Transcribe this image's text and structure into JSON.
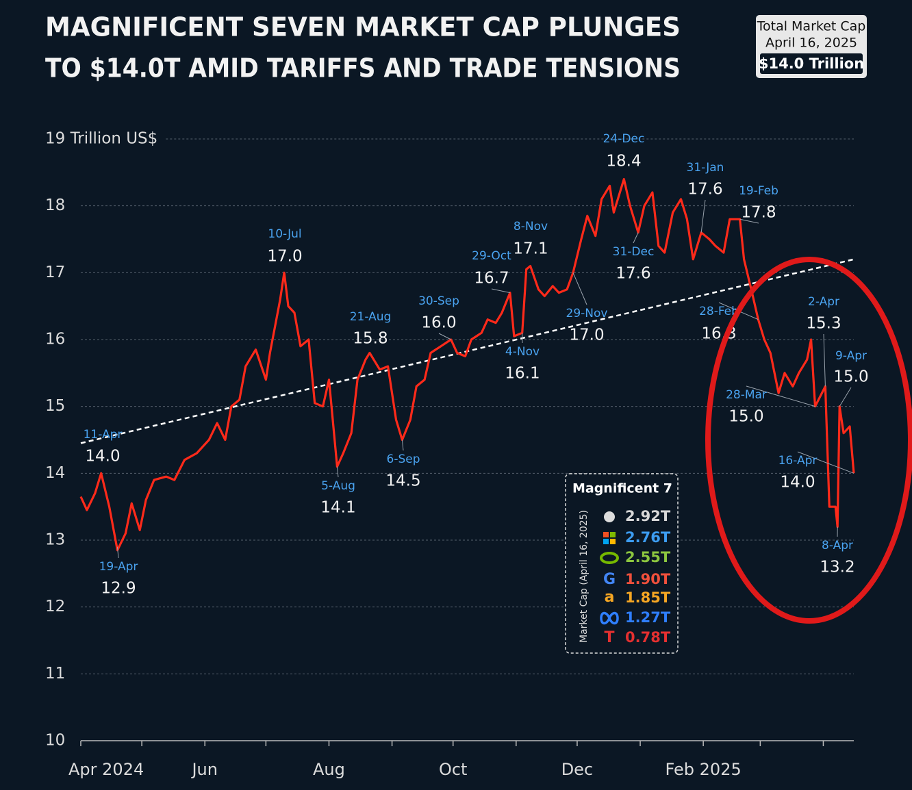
{
  "chart_data": {
    "type": "line",
    "title": [
      "MAGNIFICENT SEVEN MARKET CAP PLUNGES",
      "TO $14.0T AMID TARIFFS AND TRADE TENSIONS"
    ],
    "summary_box": {
      "title": "Total Market Cap",
      "date": "April 16, 2025",
      "value": "$14.0 Trillion"
    },
    "xlim": [
      "2024-04-01",
      "2025-04-16"
    ],
    "xticks": [
      {
        "value": "2024-04-01",
        "label": "Apr 2024"
      },
      {
        "value": "2024-06-01",
        "label": "Jun"
      },
      {
        "value": "2024-08-01",
        "label": "Aug"
      },
      {
        "value": "2024-10-01",
        "label": "Oct"
      },
      {
        "value": "2024-12-01",
        "label": "Dec"
      },
      {
        "value": "2025-02-01",
        "label": "Feb 2025"
      }
    ],
    "xminor_ticks": [
      "2024-05-01",
      "2024-07-01",
      "2024-09-01",
      "2024-11-01",
      "2025-01-01",
      "2025-03-01",
      "2025-04-01"
    ],
    "ylim": [
      10,
      19
    ],
    "yticks": [
      10,
      11,
      12,
      13,
      14,
      15,
      16,
      17,
      18,
      {
        "value": 19,
        "label": "19 Trillion US$"
      }
    ],
    "grid": true,
    "series": [
      {
        "name": "Magnificent 7",
        "color": "#ff2a1a",
        "x": [
          "2024-04-01",
          "2024-04-04",
          "2024-04-08",
          "2024-04-11",
          "2024-04-15",
          "2024-04-19",
          "2024-04-23",
          "2024-04-26",
          "2024-04-30",
          "2024-05-03",
          "2024-05-07",
          "2024-05-13",
          "2024-05-17",
          "2024-05-22",
          "2024-05-28",
          "2024-06-03",
          "2024-06-07",
          "2024-06-11",
          "2024-06-14",
          "2024-06-18",
          "2024-06-21",
          "2024-06-26",
          "2024-07-01",
          "2024-07-03",
          "2024-07-08",
          "2024-07-10",
          "2024-07-12",
          "2024-07-15",
          "2024-07-18",
          "2024-07-22",
          "2024-07-25",
          "2024-07-29",
          "2024-08-01",
          "2024-08-05",
          "2024-08-08",
          "2024-08-12",
          "2024-08-15",
          "2024-08-19",
          "2024-08-21",
          "2024-08-26",
          "2024-08-30",
          "2024-09-03",
          "2024-09-06",
          "2024-09-10",
          "2024-09-13",
          "2024-09-17",
          "2024-09-20",
          "2024-09-25",
          "2024-09-30",
          "2024-10-03",
          "2024-10-07",
          "2024-10-10",
          "2024-10-15",
          "2024-10-18",
          "2024-10-22",
          "2024-10-25",
          "2024-10-29",
          "2024-10-31",
          "2024-11-04",
          "2024-11-06",
          "2024-11-08",
          "2024-11-12",
          "2024-11-15",
          "2024-11-19",
          "2024-11-22",
          "2024-11-26",
          "2024-11-29",
          "2024-12-03",
          "2024-12-06",
          "2024-12-10",
          "2024-12-13",
          "2024-12-17",
          "2024-12-19",
          "2024-12-24",
          "2024-12-27",
          "2024-12-31",
          "2025-01-03",
          "2025-01-07",
          "2025-01-10",
          "2025-01-13",
          "2025-01-17",
          "2025-01-21",
          "2025-01-24",
          "2025-01-27",
          "2025-01-31",
          "2025-02-04",
          "2025-02-07",
          "2025-02-11",
          "2025-02-14",
          "2025-02-19",
          "2025-02-21",
          "2025-02-25",
          "2025-02-28",
          "2025-03-03",
          "2025-03-06",
          "2025-03-10",
          "2025-03-13",
          "2025-03-17",
          "2025-03-20",
          "2025-03-24",
          "2025-03-26",
          "2025-03-28",
          "2025-04-02",
          "2025-04-04",
          "2025-04-07",
          "2025-04-08",
          "2025-04-09",
          "2025-04-11",
          "2025-04-14",
          "2025-04-16"
        ],
        "values": [
          13.65,
          13.45,
          13.7,
          14.0,
          13.5,
          12.85,
          13.1,
          13.55,
          13.15,
          13.6,
          13.9,
          13.95,
          13.9,
          14.2,
          14.3,
          14.5,
          14.75,
          14.5,
          15.0,
          15.1,
          15.6,
          15.85,
          15.4,
          15.8,
          16.6,
          17.0,
          16.5,
          16.4,
          15.9,
          16.0,
          15.05,
          15.0,
          15.4,
          14.1,
          14.3,
          14.6,
          15.4,
          15.7,
          15.8,
          15.55,
          15.6,
          14.8,
          14.5,
          14.8,
          15.3,
          15.4,
          15.8,
          15.9,
          16.0,
          15.8,
          15.75,
          16.0,
          16.1,
          16.3,
          16.25,
          16.4,
          16.7,
          16.05,
          16.1,
          17.05,
          17.1,
          16.75,
          16.65,
          16.8,
          16.7,
          16.75,
          17.0,
          17.5,
          17.85,
          17.55,
          18.1,
          18.3,
          17.9,
          18.4,
          18.0,
          17.6,
          18.0,
          18.2,
          17.4,
          17.3,
          17.9,
          18.1,
          17.8,
          17.2,
          17.6,
          17.5,
          17.4,
          17.3,
          17.8,
          17.8,
          17.2,
          16.7,
          16.3,
          16.0,
          15.8,
          15.2,
          15.5,
          15.3,
          15.5,
          15.7,
          16.0,
          15.0,
          15.3,
          13.5,
          13.5,
          13.2,
          15.0,
          14.6,
          14.7,
          14.0
        ]
      }
    ],
    "trendline": {
      "x": [
        "2024-04-01",
        "2025-04-16"
      ],
      "values": [
        14.45,
        17.2
      ],
      "color": "#ffffff"
    },
    "annotations": [
      {
        "date": "11-Apr",
        "label": "14.0",
        "x": "2024-04-11",
        "value": 14.0
      },
      {
        "date": "19-Apr",
        "label": "12.9",
        "x": "2024-04-19",
        "value": 12.9
      },
      {
        "date": "10-Jul",
        "label": "17.0",
        "x": "2024-07-10",
        "value": 17.0
      },
      {
        "date": "5-Aug",
        "label": "14.1",
        "x": "2024-08-05",
        "value": 14.1
      },
      {
        "date": "21-Aug",
        "label": "15.8",
        "x": "2024-08-21",
        "value": 15.8
      },
      {
        "date": "6-Sep",
        "label": "14.5",
        "x": "2024-09-06",
        "value": 14.5
      },
      {
        "date": "30-Sep",
        "label": "16.0",
        "x": "2024-09-30",
        "value": 16.0
      },
      {
        "date": "29-Oct",
        "label": "16.7",
        "x": "2024-10-29",
        "value": 16.7
      },
      {
        "date": "4-Nov",
        "label": "16.1",
        "x": "2024-11-04",
        "value": 16.1
      },
      {
        "date": "8-Nov",
        "label": "17.1",
        "x": "2024-11-08",
        "value": 17.1
      },
      {
        "date": "29-Nov",
        "label": "17.0",
        "x": "2024-11-29",
        "value": 17.0
      },
      {
        "date": "24-Dec",
        "label": "18.4",
        "x": "2024-12-24",
        "value": 18.4
      },
      {
        "date": "31-Dec",
        "label": "17.6",
        "x": "2024-12-31",
        "value": 17.6
      },
      {
        "date": "31-Jan",
        "label": "17.6",
        "x": "2025-01-31",
        "value": 17.6
      },
      {
        "date": "19-Feb",
        "label": "17.8",
        "x": "2025-02-19",
        "value": 17.8
      },
      {
        "date": "28-Feb",
        "label": "16.3",
        "x": "2025-02-28",
        "value": 16.3
      },
      {
        "date": "28-Mar",
        "label": "15.0",
        "x": "2025-03-28",
        "value": 15.0
      },
      {
        "date": "2-Apr",
        "label": "15.3",
        "x": "2025-04-02",
        "value": 15.3
      },
      {
        "date": "9-Apr",
        "label": "15.0",
        "x": "2025-04-09",
        "value": 15.0
      },
      {
        "date": "16-Apr",
        "label": "14.0",
        "x": "2025-04-16",
        "value": 14.0
      },
      {
        "date": "8-Apr",
        "label": "13.2",
        "x": "2025-04-08",
        "value": 13.2
      }
    ],
    "legend": {
      "title": "Magnificent 7",
      "subtitle": "Market Cap (April 16, 2025)",
      "items": [
        {
          "label": "2.92T",
          "color": "#d8d8d8"
        },
        {
          "label": "2.76T",
          "color": "#3d9df2"
        },
        {
          "label": "2.55T",
          "color": "#8cc63f"
        },
        {
          "label": "1.90T",
          "color": "#f0503c"
        },
        {
          "label": "1.85T",
          "color": "#f5a623"
        },
        {
          "label": "1.27T",
          "color": "#2f7fff"
        },
        {
          "label": "0.78T",
          "color": "#e53030"
        }
      ]
    }
  }
}
